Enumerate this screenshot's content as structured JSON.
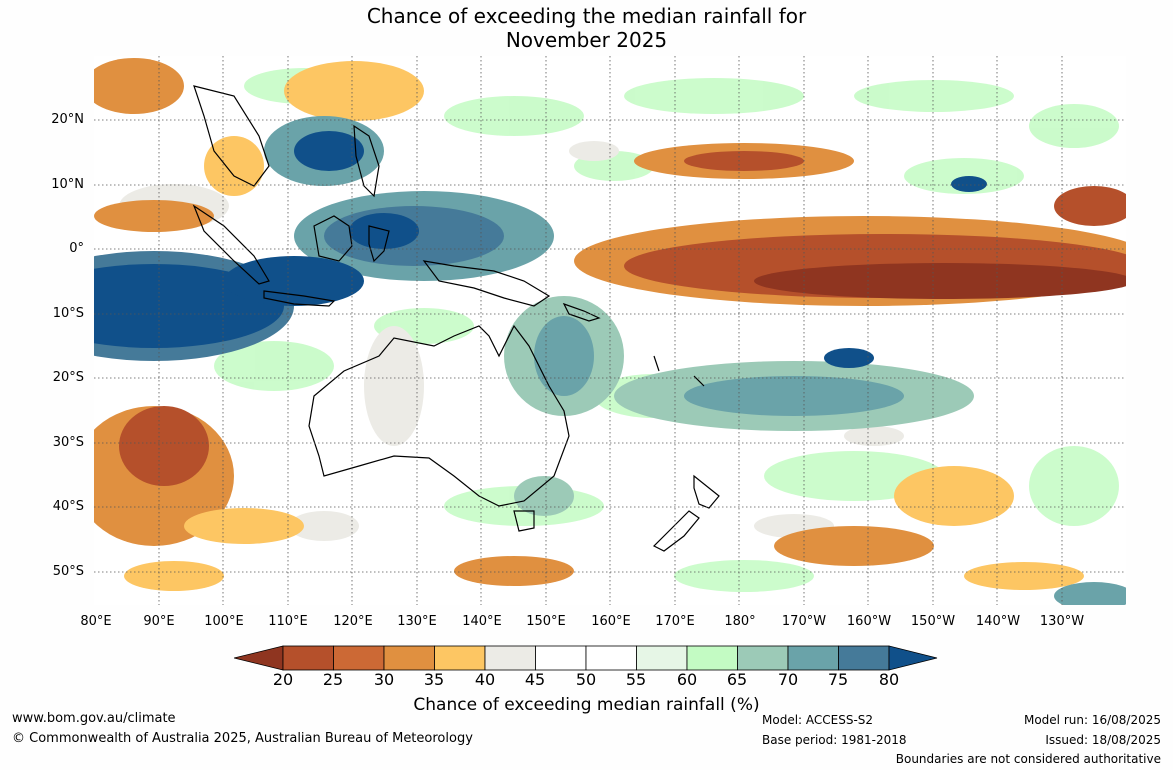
{
  "title_line1": "Chance of exceeding the median rainfall for",
  "title_line2": "November 2025",
  "lat_labels": [
    "20°N",
    "10°N",
    "0°",
    "10°S",
    "20°S",
    "30°S",
    "40°S",
    "50°S"
  ],
  "lon_labels": [
    "80°E",
    "90°E",
    "100°E",
    "110°E",
    "120°E",
    "130°E",
    "140°E",
    "150°E",
    "160°E",
    "170°E",
    "180°",
    "170°W",
    "160°W",
    "150°W",
    "140°W",
    "130°W"
  ],
  "colorbar": {
    "ticks": [
      "20",
      "25",
      "30",
      "35",
      "40",
      "45",
      "50",
      "55",
      "60",
      "65",
      "70",
      "75",
      "80"
    ],
    "colors": [
      "#8f3520",
      "#b5502b",
      "#cc6935",
      "#e09040",
      "#fdc663",
      "#ecebe6",
      "#ffffff",
      "#ffffff",
      "#e6f6e6",
      "#c3fbc3",
      "#9ccab7",
      "#6aa3a9",
      "#457a99",
      "#10508a"
    ],
    "label": "Chance of exceeding median rainfall (%)"
  },
  "footer": {
    "website": "www.bom.gov.au/climate",
    "copyright": "© Commonwealth of Australia 2025, Australian Bureau of Meteorology",
    "model": "Model: ACCESS-S2",
    "base_period": "Base period: 1981-2018",
    "model_run": "Model run: 16/08/2025",
    "issued": "Issued: 18/08/2025",
    "disclaimer": "Boundaries are not considered authoritative"
  }
}
